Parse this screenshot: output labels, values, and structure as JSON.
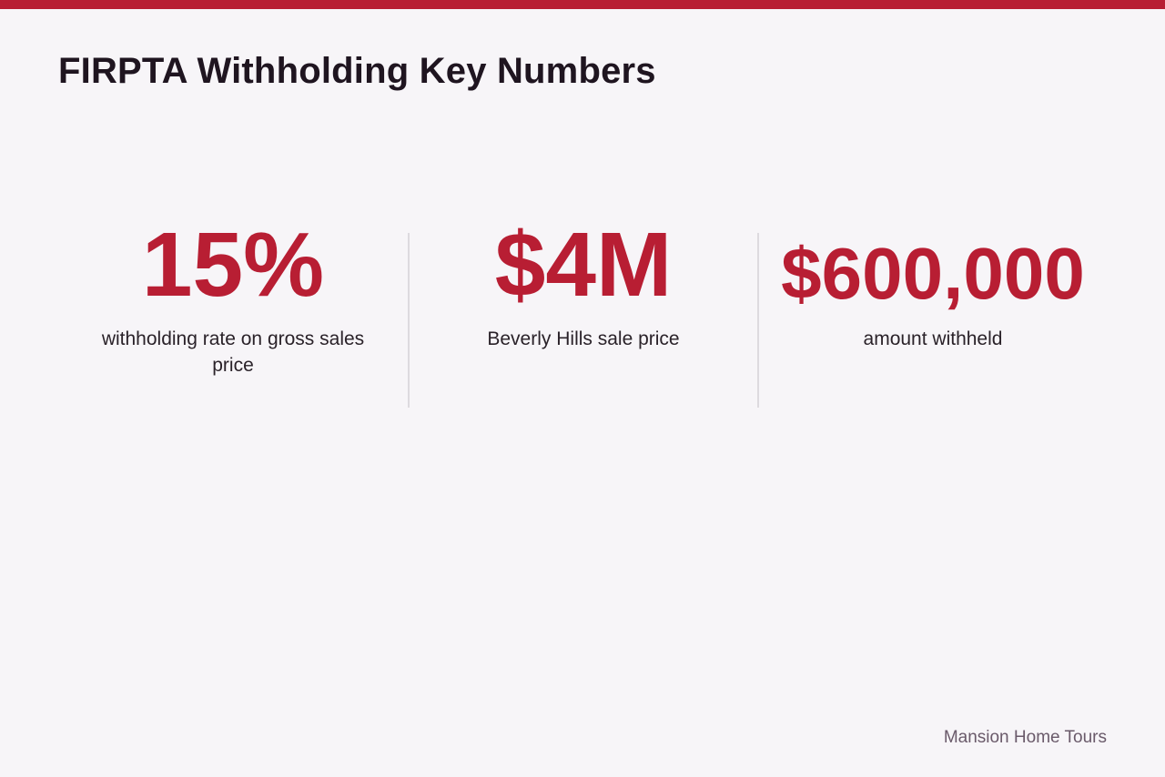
{
  "header": {
    "title": "FIRPTA Withholding Key Numbers"
  },
  "stats": [
    {
      "value": "15%",
      "label": "withholding rate on gross sales price"
    },
    {
      "value": "$4M",
      "label": "Beverly Hills sale price"
    },
    {
      "value": "$600,000",
      "label": "amount withheld"
    }
  ],
  "footer": {
    "brand": "Mansion Home Tours"
  }
}
